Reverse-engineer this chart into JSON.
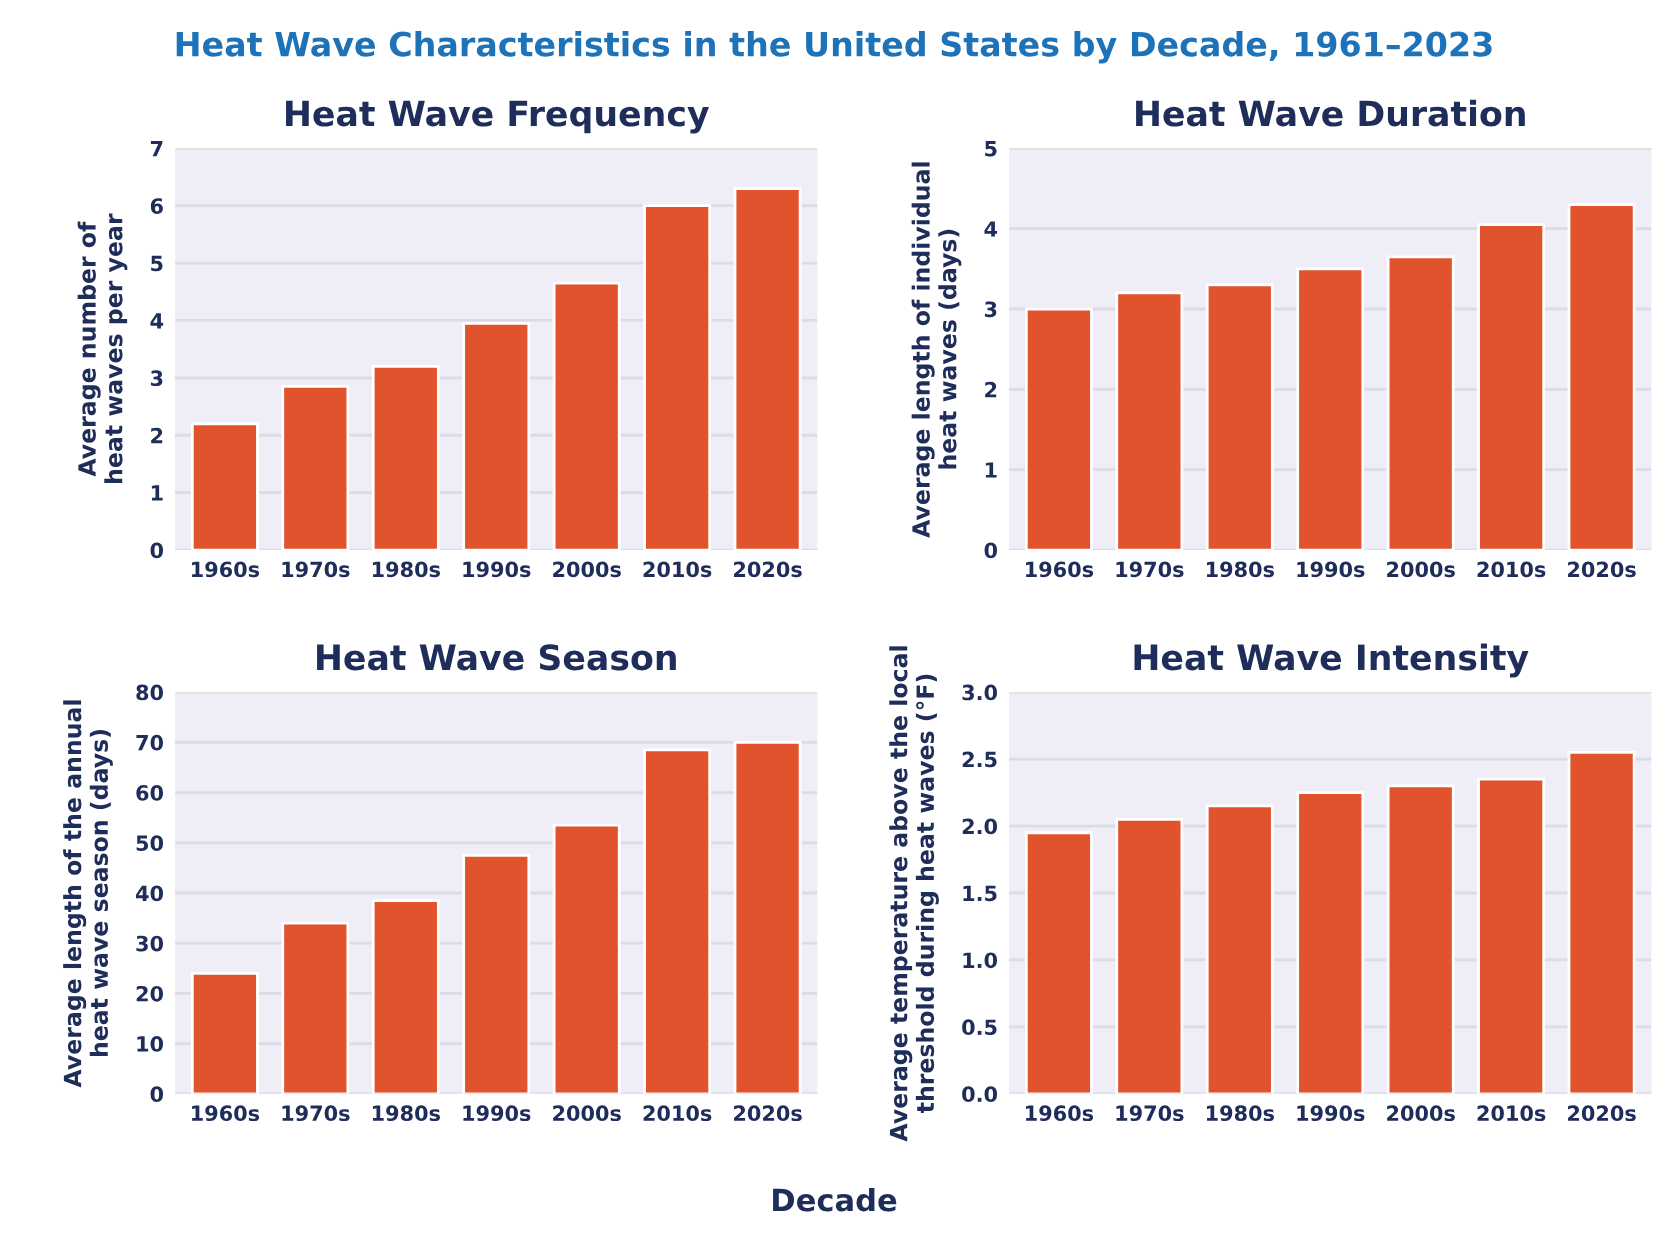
{
  "chart_data": [
    {
      "type": "bar",
      "title": "Heat Wave Frequency",
      "ylabel": "Average number of\nheat waves per year",
      "categories": [
        "1960s",
        "1970s",
        "1980s",
        "1990s",
        "2000s",
        "2010s",
        "2020s"
      ],
      "values": [
        2.2,
        2.85,
        3.2,
        3.95,
        4.65,
        6.0,
        6.3
      ],
      "color": "#e0532d",
      "ylim": [
        0,
        7
      ],
      "yticks": [
        0,
        1,
        2,
        3,
        4,
        5,
        6,
        7
      ],
      "grid": "y",
      "annotations": [
        "Heat Wave Characteristics in the United States by Decade, 1961–2023",
        "Decade"
      ]
    },
    {
      "type": "bar",
      "title": "Heat Wave Duration",
      "ylabel": "Average length of individual\nheat waves (days)",
      "categories": [
        "1960s",
        "1970s",
        "1980s",
        "1990s",
        "2000s",
        "2010s",
        "2020s"
      ],
      "values": [
        3.0,
        3.2,
        3.3,
        3.5,
        3.65,
        4.05,
        4.3
      ],
      "color": "#e0532d",
      "ylim": [
        0,
        5
      ],
      "yticks": [
        0,
        1,
        2,
        3,
        4,
        5
      ],
      "grid": "y"
    },
    {
      "type": "bar",
      "title": "Heat Wave Season",
      "ylabel": "Average length of the annual\nheat wave season (days)",
      "categories": [
        "1960s",
        "1970s",
        "1980s",
        "1990s",
        "2000s",
        "2010s",
        "2020s"
      ],
      "values": [
        24,
        34,
        38.5,
        47.5,
        53.5,
        68.5,
        70
      ],
      "color": "#e0532d",
      "ylim": [
        0,
        80
      ],
      "yticks": [
        0,
        10,
        20,
        30,
        40,
        50,
        60,
        70,
        80
      ],
      "grid": "y"
    },
    {
      "type": "bar",
      "title": "Heat Wave Intensity",
      "ylabel": "Average temperature above the local\nthreshold during heat waves (°F)",
      "categories": [
        "1960s",
        "1970s",
        "1980s",
        "1990s",
        "2000s",
        "2010s",
        "2020s"
      ],
      "values": [
        1.95,
        2.05,
        2.15,
        2.25,
        2.3,
        2.35,
        2.55
      ],
      "color": "#e0532d",
      "ylim": [
        0,
        3.0
      ],
      "yticks": [
        {
          "value": 0,
          "label": "0.0"
        },
        {
          "value": 0.5,
          "label": "0.5"
        },
        {
          "value": 1.0,
          "label": "1.0"
        },
        {
          "value": 1.5,
          "label": "1.5"
        },
        {
          "value": 2.0,
          "label": "2.0"
        },
        {
          "value": 2.5,
          "label": "2.5"
        },
        {
          "value": 3.0,
          "label": "3.0"
        }
      ],
      "grid": "y"
    }
  ]
}
